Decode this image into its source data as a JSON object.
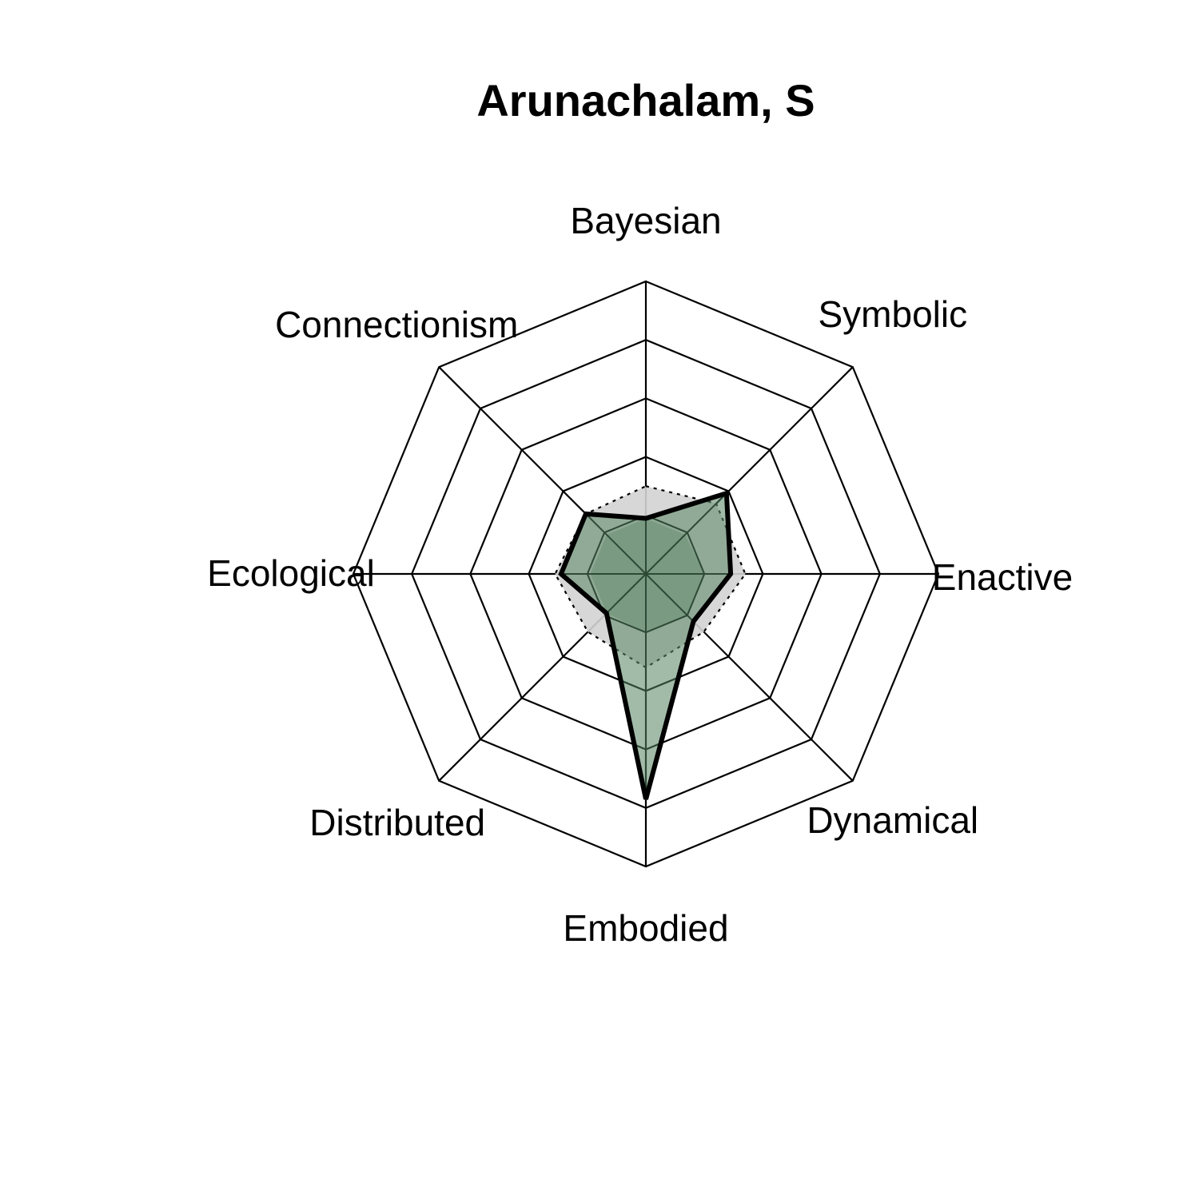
{
  "chart_data": {
    "type": "radar",
    "title": "Arunachalam, S",
    "axes": [
      "Bayesian",
      "Symbolic",
      "Enactive",
      "Dynamical",
      "Embodied",
      "Distributed",
      "Ecological",
      "Connectionism"
    ],
    "rlim": [
      0,
      5
    ],
    "grid_levels": [
      1,
      2,
      3,
      4,
      5
    ],
    "series": [
      {
        "style": "filled-green-bold-outline",
        "values": [
          0.95,
          1.95,
          1.45,
          1.15,
          3.85,
          0.95,
          1.45,
          1.45
        ],
        "fill": "#5f8a69",
        "stroke": "#000000"
      },
      {
        "style": "filled-green-thin",
        "values": [
          0.95,
          0.95,
          1.0,
          1.0,
          1.0,
          0.95,
          0.95,
          0.95
        ],
        "fill": "#5f8a69"
      },
      {
        "style": "grey-band-dotted",
        "values": [
          1.5,
          1.7,
          1.7,
          1.4,
          1.6,
          1.4,
          1.55,
          1.45
        ],
        "fill": "#d3d3d3"
      }
    ],
    "colors": {
      "grid": "#000000",
      "inner_grid": "#2e4a37",
      "band": "#d3d3d3",
      "series_fill": "#5f8a69"
    }
  }
}
